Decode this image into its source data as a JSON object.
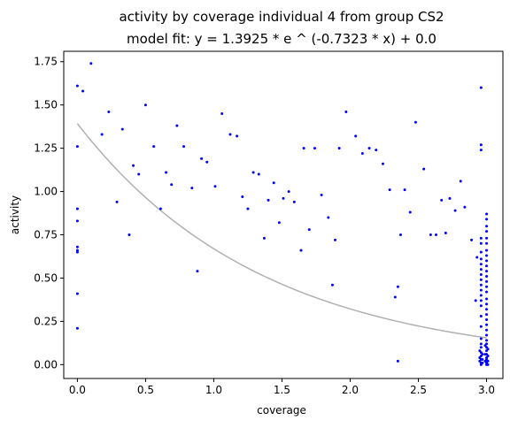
{
  "chart_data": {
    "type": "scatter",
    "title": "activity by coverage individual 4 from group CS2",
    "subtitle": "model fit: y = 1.3925 * e ^ (-0.7323 * x) + 0.0",
    "xlabel": "coverage",
    "ylabel": "activity",
    "xlim": [
      -0.1,
      3.12
    ],
    "ylim": [
      -0.08,
      1.81
    ],
    "x_ticks": [
      "0.0",
      "0.5",
      "1.0",
      "1.5",
      "2.0",
      "2.5",
      "3.0"
    ],
    "x_tick_values": [
      0,
      0.5,
      1.0,
      1.5,
      2.0,
      2.5,
      3.0
    ],
    "y_ticks": [
      "0.00",
      "0.25",
      "0.50",
      "0.75",
      "1.00",
      "1.25",
      "1.50",
      "1.75"
    ],
    "y_tick_values": [
      0,
      0.25,
      0.5,
      0.75,
      1.0,
      1.25,
      1.5,
      1.75
    ],
    "grid": false,
    "point_color": "#0000ff",
    "fit_color": "#b0b0b0",
    "fit": {
      "a": 1.3925,
      "b": -0.7323,
      "c": 0.0,
      "x_range": [
        0,
        3.0
      ]
    },
    "points": [
      [
        0.0,
        1.61
      ],
      [
        0.0,
        1.26
      ],
      [
        0.0,
        0.9
      ],
      [
        0.0,
        0.83
      ],
      [
        0.0,
        0.68
      ],
      [
        0.0,
        0.66
      ],
      [
        0.0,
        0.65
      ],
      [
        0.0,
        0.41
      ],
      [
        0.0,
        0.21
      ],
      [
        0.04,
        1.58
      ],
      [
        0.1,
        1.74
      ],
      [
        0.18,
        1.33
      ],
      [
        0.23,
        1.46
      ],
      [
        0.29,
        0.94
      ],
      [
        0.33,
        1.36
      ],
      [
        0.38,
        0.75
      ],
      [
        0.41,
        1.15
      ],
      [
        0.45,
        1.1
      ],
      [
        0.5,
        1.5
      ],
      [
        0.56,
        1.26
      ],
      [
        0.61,
        0.9
      ],
      [
        0.65,
        1.11
      ],
      [
        0.69,
        1.04
      ],
      [
        0.73,
        1.38
      ],
      [
        0.78,
        1.26
      ],
      [
        0.84,
        1.02
      ],
      [
        0.88,
        0.54
      ],
      [
        0.91,
        1.19
      ],
      [
        0.95,
        1.17
      ],
      [
        1.01,
        1.03
      ],
      [
        1.06,
        1.45
      ],
      [
        1.12,
        1.33
      ],
      [
        1.17,
        1.32
      ],
      [
        1.21,
        0.97
      ],
      [
        1.25,
        0.9
      ],
      [
        1.29,
        1.11
      ],
      [
        1.33,
        1.1
      ],
      [
        1.37,
        0.73
      ],
      [
        1.4,
        0.95
      ],
      [
        1.44,
        1.05
      ],
      [
        1.48,
        0.82
      ],
      [
        1.51,
        0.96
      ],
      [
        1.55,
        1.0
      ],
      [
        1.59,
        0.94
      ],
      [
        1.64,
        0.66
      ],
      [
        1.66,
        1.25
      ],
      [
        1.7,
        0.78
      ],
      [
        1.74,
        1.25
      ],
      [
        1.79,
        0.98
      ],
      [
        1.84,
        0.85
      ],
      [
        1.87,
        0.46
      ],
      [
        1.89,
        0.72
      ],
      [
        1.92,
        1.25
      ],
      [
        1.97,
        1.46
      ],
      [
        2.04,
        1.32
      ],
      [
        2.09,
        1.22
      ],
      [
        2.14,
        1.25
      ],
      [
        2.19,
        1.24
      ],
      [
        2.24,
        1.16
      ],
      [
        2.29,
        1.01
      ],
      [
        2.33,
        0.39
      ],
      [
        2.35,
        0.45
      ],
      [
        2.35,
        0.02
      ],
      [
        2.37,
        0.75
      ],
      [
        2.4,
        1.01
      ],
      [
        2.44,
        0.88
      ],
      [
        2.48,
        1.4
      ],
      [
        2.54,
        1.13
      ],
      [
        2.59,
        0.75
      ],
      [
        2.63,
        0.75
      ],
      [
        2.67,
        0.95
      ],
      [
        2.7,
        0.76
      ],
      [
        2.73,
        0.96
      ],
      [
        2.77,
        0.89
      ],
      [
        2.81,
        1.06
      ],
      [
        2.84,
        0.91
      ],
      [
        2.89,
        0.72
      ],
      [
        2.92,
        0.37
      ],
      [
        2.93,
        0.62
      ],
      [
        2.96,
        1.6
      ],
      [
        2.96,
        1.27
      ],
      [
        2.96,
        1.24
      ],
      [
        2.96,
        0.73
      ],
      [
        2.96,
        0.7
      ],
      [
        2.96,
        0.65
      ],
      [
        2.96,
        0.61
      ],
      [
        2.96,
        0.58
      ],
      [
        2.96,
        0.55
      ],
      [
        2.96,
        0.52
      ],
      [
        2.96,
        0.49
      ],
      [
        2.96,
        0.46
      ],
      [
        2.96,
        0.43
      ],
      [
        2.96,
        0.4
      ],
      [
        2.96,
        0.37
      ],
      [
        2.96,
        0.34
      ],
      [
        2.96,
        0.28
      ],
      [
        2.96,
        0.22
      ],
      [
        2.96,
        0.15
      ],
      [
        2.96,
        0.12
      ],
      [
        2.96,
        0.1
      ],
      [
        2.96,
        0.07
      ],
      [
        2.96,
        0.05
      ],
      [
        2.96,
        0.03
      ],
      [
        2.96,
        0.01
      ],
      [
        2.96,
        0.0
      ],
      [
        2.95,
        0.08
      ],
      [
        2.95,
        0.04
      ],
      [
        2.95,
        0.02
      ],
      [
        2.97,
        0.06
      ],
      [
        2.97,
        0.03
      ],
      [
        2.97,
        0.01
      ],
      [
        2.99,
        0.11
      ],
      [
        2.99,
        0.06
      ],
      [
        2.99,
        0.02
      ],
      [
        3.0,
        0.87
      ],
      [
        3.0,
        0.84
      ],
      [
        3.0,
        0.8
      ],
      [
        3.0,
        0.77
      ],
      [
        3.0,
        0.73
      ],
      [
        3.0,
        0.7
      ],
      [
        3.0,
        0.66
      ],
      [
        3.0,
        0.63
      ],
      [
        3.0,
        0.6
      ],
      [
        3.0,
        0.57
      ],
      [
        3.0,
        0.54
      ],
      [
        3.0,
        0.51
      ],
      [
        3.0,
        0.48
      ],
      [
        3.0,
        0.45
      ],
      [
        3.0,
        0.42
      ],
      [
        3.0,
        0.38
      ],
      [
        3.0,
        0.35
      ],
      [
        3.0,
        0.32
      ],
      [
        3.0,
        0.29
      ],
      [
        3.0,
        0.26
      ],
      [
        3.0,
        0.23
      ],
      [
        3.0,
        0.2
      ],
      [
        3.0,
        0.17
      ],
      [
        3.0,
        0.14
      ],
      [
        3.0,
        0.12
      ],
      [
        3.0,
        0.1
      ],
      [
        3.0,
        0.08
      ],
      [
        3.0,
        0.06
      ],
      [
        3.0,
        0.04
      ],
      [
        3.0,
        0.03
      ],
      [
        3.0,
        0.02
      ],
      [
        3.0,
        0.01
      ],
      [
        3.0,
        0.0
      ],
      [
        3.01,
        0.09
      ],
      [
        3.01,
        0.05
      ],
      [
        3.01,
        0.02
      ],
      [
        3.01,
        0.0
      ]
    ]
  }
}
